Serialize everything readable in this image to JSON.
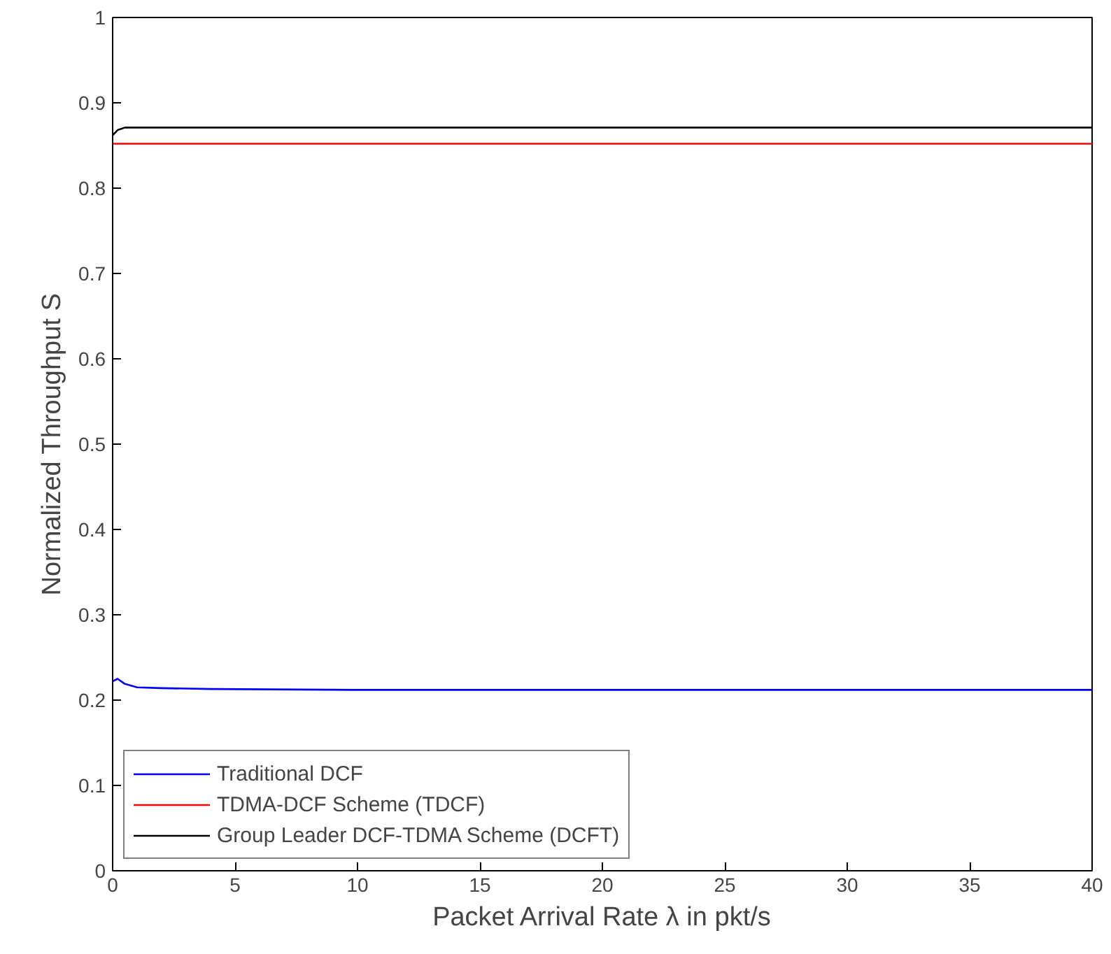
{
  "chart_data": {
    "type": "line",
    "xlabel": "Packet Arrival Rate λ in pkt/s",
    "ylabel": "Normalized Throughput S",
    "xlim": [
      0,
      40
    ],
    "ylim": [
      0,
      1
    ],
    "xticks": [
      0,
      5,
      10,
      15,
      20,
      25,
      30,
      35,
      40
    ],
    "yticks": [
      0,
      0.1,
      0.2,
      0.3,
      0.4,
      0.5,
      0.6,
      0.7,
      0.8,
      0.9,
      1
    ],
    "grid": false,
    "legend": "bottom left",
    "marker": "none",
    "line_style": "solid",
    "series": [
      {
        "name": "Traditional DCF",
        "color": "#0000ff",
        "x": [
          0,
          0.2,
          0.5,
          1,
          2,
          4,
          10,
          20,
          30,
          40
        ],
        "values": [
          0.222,
          0.225,
          0.219,
          0.215,
          0.214,
          0.213,
          0.212,
          0.212,
          0.212,
          0.212
        ]
      },
      {
        "name": "TDMA-DCF Scheme (TDCF)",
        "color": "#ff0000",
        "x": [
          0,
          10,
          20,
          30,
          40
        ],
        "values": [
          0.852,
          0.852,
          0.852,
          0.852,
          0.852
        ]
      },
      {
        "name": "Group Leader DCF-TDMA Scheme (DCFT)",
        "color": "#000000",
        "x": [
          0,
          0.2,
          0.5,
          1,
          10,
          20,
          30,
          40
        ],
        "values": [
          0.862,
          0.868,
          0.871,
          0.871,
          0.871,
          0.871,
          0.871,
          0.871
        ]
      }
    ]
  }
}
